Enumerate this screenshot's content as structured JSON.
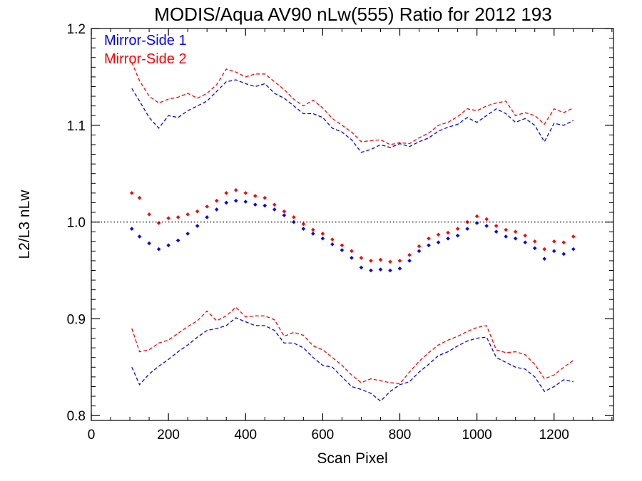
{
  "chart_data": {
    "type": "scatter",
    "title": "MODIS/Aqua AV90 nLw(555) Ratio for 2012 193",
    "xlabel": "Scan Pixel",
    "ylabel": "L2/L3 nLw",
    "xlim": [
      0,
      1354
    ],
    "ylim": [
      0.795,
      1.2
    ],
    "x_ticks": [
      0,
      200,
      400,
      600,
      800,
      1000,
      1200
    ],
    "y_ticks": [
      0.8,
      0.9,
      1.0,
      1.1,
      1.2
    ],
    "x_tick_labels": [
      "0",
      "200",
      "400",
      "600",
      "800",
      "1000",
      "1200"
    ],
    "y_tick_labels": [
      "0.8",
      "0.9",
      "1.0",
      "1.1",
      "1.2"
    ],
    "reference_line": {
      "y": 1.0,
      "style": "dotted",
      "color": "#000000"
    },
    "legend": {
      "placement": "top-left"
    },
    "series": [
      {
        "name": "Mirror-Side 1",
        "color": "#0000ff",
        "mean": {
          "x": [
            105,
            125,
            150,
            175,
            200,
            225,
            250,
            275,
            300,
            325,
            350,
            375,
            400,
            425,
            450,
            475,
            500,
            525,
            550,
            575,
            600,
            625,
            650,
            675,
            700,
            725,
            750,
            775,
            800,
            825,
            850,
            875,
            900,
            925,
            950,
            975,
            1000,
            1025,
            1050,
            1075,
            1100,
            1125,
            1150,
            1175,
            1200,
            1225,
            1250
          ],
          "y": [
            0.993,
            0.985,
            0.978,
            0.972,
            0.976,
            0.981,
            0.988,
            0.996,
            1.005,
            1.013,
            1.02,
            1.022,
            1.021,
            1.018,
            1.017,
            1.013,
            1.007,
            1.0,
            0.993,
            0.988,
            0.983,
            0.977,
            0.971,
            0.963,
            0.953,
            0.95,
            0.951,
            0.95,
            0.952,
            0.96,
            0.97,
            0.976,
            0.979,
            0.983,
            0.986,
            0.993,
            0.999,
            0.996,
            0.99,
            0.985,
            0.983,
            0.979,
            0.973,
            0.962,
            0.97,
            0.967,
            0.972
          ]
        },
        "upper": {
          "x": [
            105,
            125,
            150,
            175,
            200,
            225,
            250,
            275,
            300,
            325,
            350,
            375,
            400,
            425,
            450,
            475,
            500,
            525,
            550,
            575,
            600,
            625,
            650,
            675,
            700,
            725,
            750,
            775,
            800,
            825,
            850,
            875,
            900,
            925,
            950,
            975,
            1000,
            1025,
            1050,
            1075,
            1100,
            1125,
            1150,
            1175,
            1200,
            1225,
            1250
          ],
          "y": [
            1.138,
            1.125,
            1.108,
            1.097,
            1.11,
            1.108,
            1.115,
            1.12,
            1.125,
            1.135,
            1.145,
            1.147,
            1.143,
            1.14,
            1.143,
            1.133,
            1.128,
            1.12,
            1.112,
            1.112,
            1.108,
            1.097,
            1.093,
            1.085,
            1.072,
            1.075,
            1.08,
            1.077,
            1.081,
            1.078,
            1.083,
            1.087,
            1.094,
            1.098,
            1.101,
            1.108,
            1.103,
            1.11,
            1.117,
            1.112,
            1.103,
            1.107,
            1.1,
            1.083,
            1.102,
            1.1,
            1.105
          ]
        },
        "lower": {
          "x": [
            105,
            125,
            150,
            175,
            200,
            225,
            250,
            275,
            300,
            325,
            350,
            375,
            400,
            425,
            450,
            475,
            500,
            525,
            550,
            575,
            600,
            625,
            650,
            675,
            700,
            725,
            750,
            775,
            800,
            825,
            850,
            875,
            900,
            925,
            950,
            975,
            1000,
            1025,
            1050,
            1075,
            1100,
            1125,
            1150,
            1175,
            1200,
            1225,
            1250
          ],
          "y": [
            0.85,
            0.832,
            0.843,
            0.851,
            0.858,
            0.866,
            0.873,
            0.881,
            0.888,
            0.89,
            0.893,
            0.901,
            0.897,
            0.893,
            0.893,
            0.888,
            0.875,
            0.875,
            0.87,
            0.86,
            0.852,
            0.85,
            0.84,
            0.83,
            0.827,
            0.823,
            0.815,
            0.825,
            0.832,
            0.835,
            0.845,
            0.853,
            0.862,
            0.866,
            0.872,
            0.877,
            0.88,
            0.881,
            0.86,
            0.855,
            0.85,
            0.848,
            0.84,
            0.825,
            0.83,
            0.837,
            0.835
          ]
        }
      },
      {
        "name": "Mirror-Side 2",
        "color": "#ff0000",
        "mean": {
          "x": [
            105,
            125,
            150,
            175,
            200,
            225,
            250,
            275,
            300,
            325,
            350,
            375,
            400,
            425,
            450,
            475,
            500,
            525,
            550,
            575,
            600,
            625,
            650,
            675,
            700,
            725,
            750,
            775,
            800,
            825,
            850,
            875,
            900,
            925,
            950,
            975,
            1000,
            1025,
            1050,
            1075,
            1100,
            1125,
            1150,
            1175,
            1200,
            1225,
            1250
          ],
          "y": [
            1.03,
            1.025,
            1.008,
            0.999,
            1.004,
            1.005,
            1.008,
            1.011,
            1.016,
            1.022,
            1.03,
            1.033,
            1.03,
            1.027,
            1.025,
            1.018,
            1.011,
            1.005,
            0.998,
            0.992,
            0.988,
            0.982,
            0.976,
            0.97,
            0.963,
            0.96,
            0.961,
            0.959,
            0.96,
            0.966,
            0.975,
            0.983,
            0.987,
            0.989,
            0.993,
            1.0,
            1.006,
            1.003,
            0.996,
            0.992,
            0.99,
            0.986,
            0.98,
            0.972,
            0.98,
            0.979,
            0.985
          ]
        },
        "upper": {
          "x": [
            105,
            125,
            150,
            175,
            200,
            225,
            250,
            275,
            300,
            325,
            350,
            375,
            400,
            425,
            450,
            475,
            500,
            525,
            550,
            575,
            600,
            625,
            650,
            675,
            700,
            725,
            750,
            775,
            800,
            825,
            850,
            875,
            900,
            925,
            950,
            975,
            1000,
            1025,
            1050,
            1075,
            1100,
            1125,
            1150,
            1175,
            1200,
            1225,
            1250
          ],
          "y": [
            1.165,
            1.146,
            1.13,
            1.123,
            1.127,
            1.129,
            1.133,
            1.128,
            1.133,
            1.142,
            1.158,
            1.155,
            1.15,
            1.153,
            1.153,
            1.145,
            1.137,
            1.127,
            1.12,
            1.126,
            1.118,
            1.107,
            1.1,
            1.093,
            1.083,
            1.084,
            1.085,
            1.08,
            1.082,
            1.081,
            1.087,
            1.092,
            1.1,
            1.103,
            1.109,
            1.117,
            1.115,
            1.12,
            1.123,
            1.125,
            1.11,
            1.113,
            1.11,
            1.101,
            1.117,
            1.113,
            1.118
          ]
        },
        "lower": {
          "x": [
            105,
            125,
            150,
            175,
            200,
            225,
            250,
            275,
            300,
            325,
            350,
            375,
            400,
            425,
            450,
            475,
            500,
            525,
            550,
            575,
            600,
            625,
            650,
            675,
            700,
            725,
            750,
            775,
            800,
            825,
            850,
            875,
            900,
            925,
            950,
            975,
            1000,
            1025,
            1050,
            1075,
            1100,
            1125,
            1150,
            1175,
            1200,
            1225,
            1250
          ],
          "y": [
            0.89,
            0.866,
            0.868,
            0.875,
            0.878,
            0.885,
            0.892,
            0.898,
            0.908,
            0.898,
            0.903,
            0.912,
            0.902,
            0.903,
            0.903,
            0.899,
            0.882,
            0.886,
            0.883,
            0.872,
            0.868,
            0.86,
            0.852,
            0.842,
            0.834,
            0.838,
            0.836,
            0.834,
            0.833,
            0.845,
            0.856,
            0.865,
            0.873,
            0.878,
            0.882,
            0.887,
            0.891,
            0.893,
            0.868,
            0.865,
            0.866,
            0.863,
            0.853,
            0.838,
            0.842,
            0.85,
            0.857
          ]
        }
      }
    ]
  }
}
